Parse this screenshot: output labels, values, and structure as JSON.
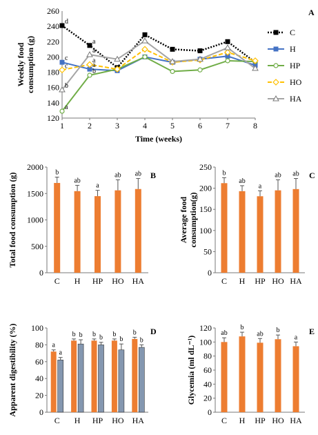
{
  "chart_data": [
    {
      "panel": "A",
      "type": "line",
      "xlabel": "Time (weeks)",
      "ylabel_lines": [
        "Weekly food",
        "consumption (g)"
      ],
      "x": [
        1,
        2,
        3,
        4,
        5,
        6,
        7,
        8
      ],
      "ylim": [
        120,
        260
      ],
      "yticks": [
        120,
        140,
        160,
        180,
        200,
        220,
        240,
        260
      ],
      "legend_position": "right",
      "series": [
        {
          "name": "C",
          "color": "#000000",
          "style": "dotted",
          "marker": "square",
          "values": [
            241,
            215,
            186,
            229,
            210,
            208,
            220,
            193
          ]
        },
        {
          "name": "H",
          "color": "#4472C4",
          "style": "solid",
          "marker": "square",
          "values": [
            193,
            184,
            182,
            200,
            193,
            197,
            201,
            189
          ]
        },
        {
          "name": "HP",
          "color": "#70AD47",
          "style": "solid",
          "marker": "circle",
          "values": [
            129,
            176,
            184,
            200,
            181,
            183,
            195,
            194
          ]
        },
        {
          "name": "HO",
          "color": "#FFC000",
          "style": "dashed",
          "marker": "diamond",
          "values": [
            183,
            190,
            184,
            210,
            193,
            196,
            206,
            195
          ]
        },
        {
          "name": "HA",
          "color": "#A5A5A5",
          "style": "solid",
          "marker": "triangle",
          "values": [
            157,
            203,
            197,
            221,
            194,
            197,
            212,
            185
          ]
        }
      ],
      "annotations": [
        {
          "x": 1,
          "series": "C",
          "text": "d"
        },
        {
          "x": 1,
          "series": "H",
          "text": "c"
        },
        {
          "x": 1,
          "series": "HO",
          "text": "c"
        },
        {
          "x": 1,
          "series": "HA",
          "text": "b"
        },
        {
          "x": 1,
          "series": "HP",
          "text": "a"
        },
        {
          "x": 2,
          "series": "C",
          "text": "a"
        },
        {
          "x": 2,
          "series": "HA",
          "text": "a"
        },
        {
          "x": 2,
          "series": "HO",
          "text": "a"
        },
        {
          "x": 2,
          "series": "H",
          "text": "a"
        },
        {
          "x": 2,
          "series": "HP",
          "text": "b"
        }
      ]
    },
    {
      "panel": "B",
      "type": "bar",
      "ylabel": "Total food consumption (g)",
      "categories": [
        "C",
        "H",
        "HP",
        "HO",
        "HA"
      ],
      "values": [
        1700,
        1545,
        1450,
        1560,
        1585
      ],
      "errors": [
        110,
        110,
        110,
        200,
        200
      ],
      "letters": [
        "b",
        "ab",
        "a",
        "ab",
        "ab"
      ],
      "ylim": [
        0,
        2000
      ],
      "yticks": [
        0,
        500,
        1000,
        1500,
        2000
      ],
      "color": "#ED7D31"
    },
    {
      "panel": "C",
      "type": "bar",
      "ylabel_lines": [
        "Average food",
        "consumption(g)"
      ],
      "categories": [
        "C",
        "H",
        "HP",
        "HO",
        "HA"
      ],
      "values": [
        212,
        193,
        181,
        195,
        198
      ],
      "errors": [
        13,
        13,
        13,
        25,
        25
      ],
      "letters": [
        "b",
        "ab",
        "a",
        "ab",
        "ab"
      ],
      "ylim": [
        0,
        250
      ],
      "yticks": [
        0,
        50,
        100,
        150,
        200,
        250
      ],
      "color": "#ED7D31"
    },
    {
      "panel": "D",
      "type": "bar",
      "ylabel": "Apparent digestibility (%)",
      "categories": [
        "C",
        "H",
        "HP",
        "HO",
        "HA"
      ],
      "series": [
        {
          "color": "#ED7D31",
          "values": [
            72,
            85,
            85,
            85,
            87
          ],
          "errors": [
            2,
            2,
            2,
            2,
            2
          ],
          "letters": [
            "a",
            "b",
            "b",
            "b",
            "b"
          ]
        },
        {
          "color": "#8497B0",
          "values": [
            62,
            81,
            80,
            74,
            77
          ],
          "errors": [
            3,
            5,
            3,
            7,
            3
          ],
          "letters": [
            "a",
            "b",
            "b",
            "b",
            "b"
          ]
        }
      ],
      "ylim": [
        0,
        100
      ],
      "yticks": [
        0,
        20,
        40,
        60,
        80,
        100
      ]
    },
    {
      "panel": "E",
      "type": "bar",
      "ylabel": "Glycemia (ml dL⁻¹)",
      "categories": [
        "C",
        "H",
        "HP",
        "HO",
        "HA"
      ],
      "values": [
        100,
        108,
        99,
        104,
        94
      ],
      "errors": [
        6,
        6,
        6,
        6,
        6
      ],
      "letters": [
        "ab",
        "b",
        "ab",
        "b",
        "a"
      ],
      "ylim": [
        0,
        120
      ],
      "yticks": [
        0,
        20,
        40,
        60,
        80,
        100,
        120
      ],
      "color": "#ED7D31"
    }
  ]
}
